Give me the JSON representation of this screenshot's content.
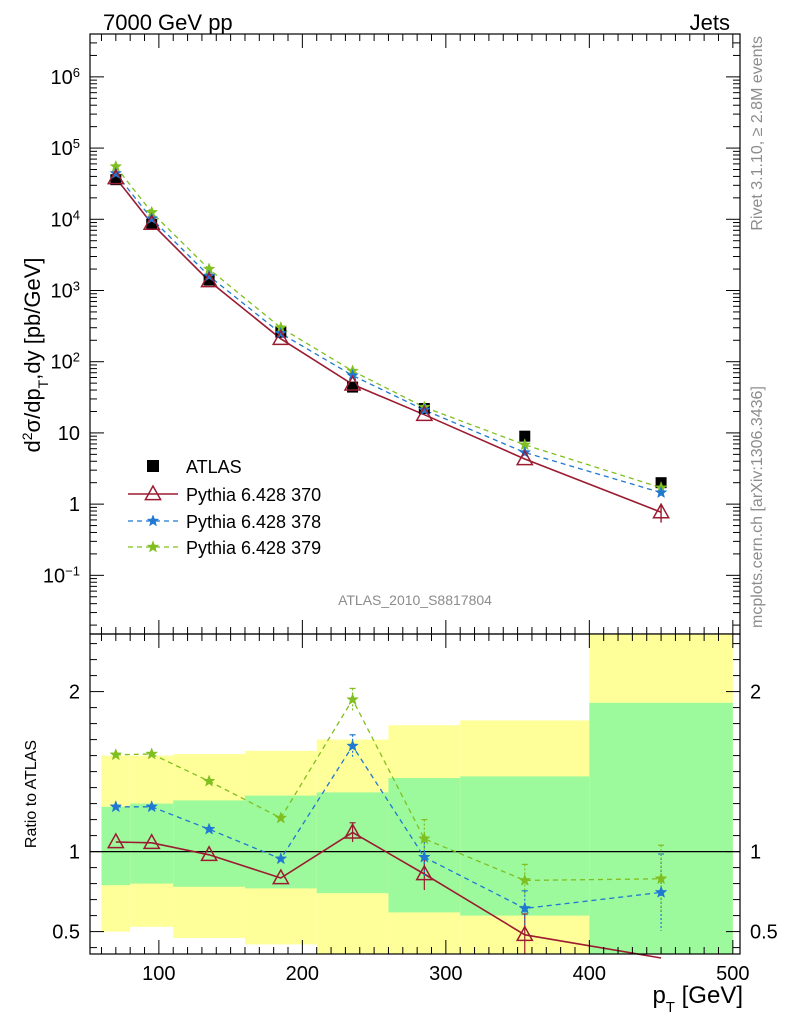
{
  "header": {
    "left": "7000 GeV pp",
    "right": "Jets"
  },
  "side_text": {
    "rivet": "Rivet 3.1.10, ≥ 2.8M events",
    "mcplots": "mcplots.cern.ch [arXiv:1306.3436]"
  },
  "analysis_label": "ATLAS_2010_S8817804",
  "colors": {
    "atlas": "#000000",
    "p370": "#9b1c31",
    "p378": "#1f78d1",
    "p379": "#7fbf1f",
    "band_inner": "#9cf99c",
    "band_outer": "#ffff99"
  },
  "chart_data": [
    {
      "type": "scatter",
      "name": "main",
      "xlim": [
        52,
        505
      ],
      "ylim": [
        0.015,
        4000000
      ],
      "yscale": "log",
      "ylabel_parts": {
        "d": "d",
        "sup2": "2",
        "rest1": "σ/dp",
        "subT1": "T",
        "rest2": ",dy [pb/GeV]"
      },
      "yticks": [
        {
          "value": 0.1,
          "base": "10",
          "exp": "−1"
        },
        {
          "value": 1,
          "base": "1",
          "exp": ""
        },
        {
          "value": 10,
          "base": "10",
          "exp": ""
        },
        {
          "value": 100,
          "base": "10",
          "exp": "2"
        },
        {
          "value": 1000,
          "base": "10",
          "exp": "3"
        },
        {
          "value": 10000,
          "base": "10",
          "exp": "4"
        },
        {
          "value": 100000,
          "base": "10",
          "exp": "5"
        },
        {
          "value": 1000000,
          "base": "10",
          "exp": "6"
        }
      ],
      "legend": [
        "ATLAS",
        "Pythia 6.428 370",
        "Pythia 6.428 378",
        "Pythia 6.428 379"
      ],
      "series": [
        {
          "name": "ATLAS",
          "x": [
            70,
            95,
            135,
            185,
            235,
            285,
            355,
            450
          ],
          "y": [
            36000,
            8500,
            1400,
            260,
            44,
            22,
            9,
            2
          ]
        },
        {
          "name": "Pythia 6.428 370",
          "x": [
            70,
            95,
            135,
            185,
            235,
            285,
            355,
            450
          ],
          "y": [
            38000,
            8700,
            1360,
            210,
            48,
            18,
            4.3,
            0.77
          ]
        },
        {
          "name": "Pythia 6.428 378",
          "x": [
            70,
            95,
            135,
            185,
            235,
            285,
            355,
            450
          ],
          "y": [
            44000,
            10200,
            1600,
            250,
            64,
            21,
            5.3,
            1.45
          ]
        },
        {
          "name": "Pythia 6.428 379",
          "x": [
            70,
            95,
            135,
            185,
            235,
            285,
            355,
            450
          ],
          "y": [
            55000,
            12500,
            2000,
            300,
            74,
            23,
            6.8,
            1.7
          ]
        }
      ]
    },
    {
      "type": "line",
      "name": "ratio",
      "xlim": [
        52,
        505
      ],
      "ylim": [
        0.36,
        2.36
      ],
      "ylabel": "Ratio to ATLAS",
      "xlabel": "p_T [GeV]",
      "xlabel_parts": {
        "p": "p",
        "sub": "T",
        "unit": " [GeV]"
      },
      "xticks": [
        100,
        200,
        300,
        400,
        500
      ],
      "yticks": [
        0.5,
        1,
        2
      ],
      "bins": [
        {
          "x0": 60,
          "x1": 80,
          "outer": [
            0.5,
            1.6
          ],
          "inner": [
            0.79,
            1.28
          ]
        },
        {
          "x0": 80,
          "x1": 110,
          "outer": [
            0.53,
            1.6
          ],
          "inner": [
            0.8,
            1.3
          ]
        },
        {
          "x0": 110,
          "x1": 160,
          "outer": [
            0.46,
            1.61
          ],
          "inner": [
            0.78,
            1.32
          ]
        },
        {
          "x0": 160,
          "x1": 210,
          "outer": [
            0.42,
            1.63
          ],
          "inner": [
            0.77,
            1.35
          ]
        },
        {
          "x0": 210,
          "x1": 260,
          "outer": [
            0.36,
            1.7
          ],
          "inner": [
            0.74,
            1.37
          ]
        },
        {
          "x0": 260,
          "x1": 310,
          "outer": [
            0.36,
            1.79
          ],
          "inner": [
            0.62,
            1.46
          ]
        },
        {
          "x0": 310,
          "x1": 400,
          "outer": [
            0.36,
            1.82
          ],
          "inner": [
            0.6,
            1.47
          ]
        },
        {
          "x0": 400,
          "x1": 500,
          "outer": [
            0.36,
            2.36
          ],
          "inner": [
            0.36,
            1.93
          ]
        }
      ],
      "series": [
        {
          "name": "Pythia 6.428 370",
          "x": [
            70,
            95,
            135,
            185,
            235,
            285,
            355,
            450
          ],
          "y": [
            1.06,
            1.055,
            0.98,
            0.835,
            1.12,
            0.86,
            0.48,
            0.335
          ],
          "err": [
            0,
            0,
            0,
            0,
            0.06,
            0.1,
            0.13,
            0
          ]
        },
        {
          "name": "Pythia 6.428 378",
          "x": [
            70,
            95,
            135,
            185,
            235,
            285,
            355,
            450
          ],
          "y": [
            1.28,
            1.28,
            1.14,
            0.955,
            1.66,
            0.965,
            0.645,
            0.745
          ],
          "err": [
            0,
            0,
            0,
            0,
            0.07,
            0.12,
            0.11,
            0.24
          ]
        },
        {
          "name": "Pythia 6.428 379",
          "x": [
            70,
            95,
            135,
            185,
            235,
            285,
            355,
            450
          ],
          "y": [
            1.605,
            1.61,
            1.44,
            1.21,
            1.95,
            1.08,
            0.82,
            0.83
          ],
          "err": [
            0,
            0,
            0,
            0,
            0.07,
            0.12,
            0.1,
            0.21
          ]
        }
      ]
    }
  ]
}
